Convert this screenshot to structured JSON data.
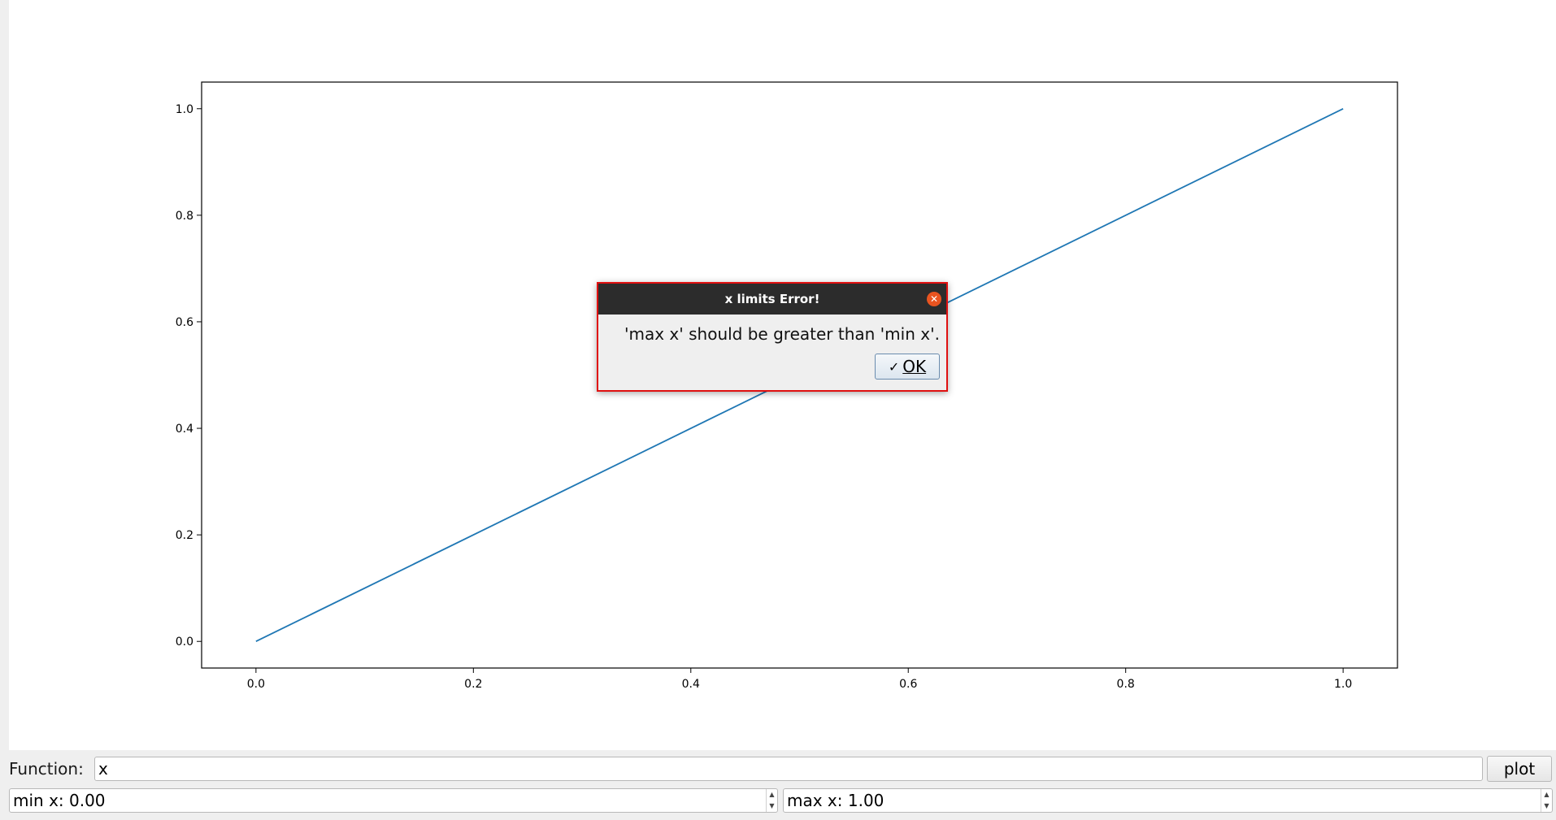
{
  "chart_data": {
    "type": "line",
    "series": [
      {
        "x": [
          0.0,
          1.0
        ],
        "y": [
          0.0,
          1.0
        ],
        "color": "#1f77b4"
      }
    ],
    "xlim": [
      -0.05,
      1.05
    ],
    "ylim": [
      -0.05,
      1.05
    ],
    "x_ticks": [
      0.0,
      0.2,
      0.4,
      0.6,
      0.8,
      1.0
    ],
    "y_ticks": [
      0.0,
      0.2,
      0.4,
      0.6,
      0.8,
      1.0
    ],
    "x_tick_labels": [
      "0.0",
      "0.2",
      "0.4",
      "0.6",
      "0.8",
      "1.0"
    ],
    "y_tick_labels": [
      "0.0",
      "0.2",
      "0.4",
      "0.6",
      "0.8",
      "1.0"
    ],
    "grid": false,
    "title": "",
    "xlabel": "",
    "ylabel": ""
  },
  "controls": {
    "function_label": "Function:",
    "function_value": "x",
    "plot_button_label": "plot",
    "min_x_text": "min x: 0.00",
    "max_x_text": "max x: 1.00"
  },
  "dialog": {
    "title": "x limits Error!",
    "message": "'max x' should be greater than 'min x'.",
    "ok_label": "OK",
    "close_icon": "close-icon",
    "check_icon": "check-icon"
  }
}
